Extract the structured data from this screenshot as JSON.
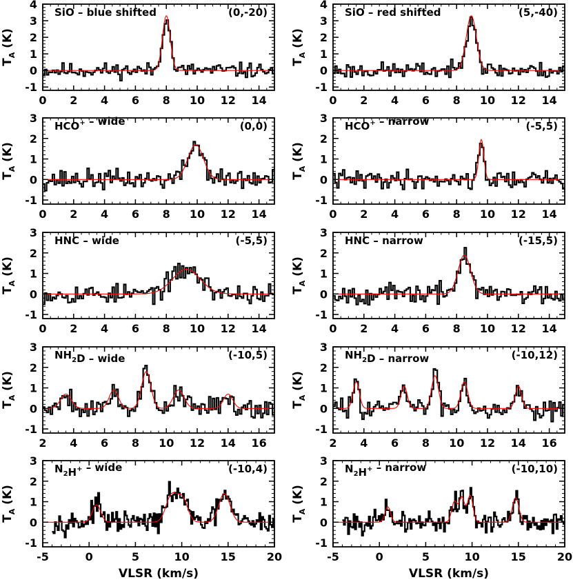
{
  "figure": {
    "xaxis_label": "VLSR (km/s)",
    "yaxis_label_main": "T",
    "yaxis_label_sub": "A",
    "yaxis_label_unit": "(K)"
  },
  "colors": {
    "spectrum": "#000000",
    "fit": "#ff0000",
    "axes": "#000000"
  },
  "chart_data": [
    {
      "type": "line",
      "title": "SiO – blue shifted",
      "title_main": "SiO",
      "title_suffix": " – blue shifted",
      "position_label": "(0,-20)",
      "xlim": [
        0,
        15
      ],
      "ylim": [
        -1.2,
        4
      ],
      "xticks": [
        0,
        2,
        4,
        6,
        8,
        10,
        12,
        14
      ],
      "yticks": [
        -1,
        0,
        1,
        2,
        3,
        4
      ],
      "x_range": [
        0,
        15
      ],
      "n_channels": 120,
      "noise": 0.28,
      "seed": 11,
      "series": [
        {
          "name": "fit",
          "components": [
            {
              "center": 8.0,
              "amp": 3.3,
              "width": 0.25
            }
          ]
        }
      ]
    },
    {
      "type": "line",
      "title": "SiO – red shifted",
      "title_main": "SiO",
      "title_suffix": " – red shifted",
      "position_label": "(5,-40)",
      "xlim": [
        0,
        15
      ],
      "ylim": [
        -1.2,
        4
      ],
      "xticks": [
        0,
        2,
        4,
        6,
        8,
        10,
        12,
        14
      ],
      "yticks": [
        -1,
        0,
        1,
        2,
        3,
        4
      ],
      "x_range": [
        0,
        15
      ],
      "n_channels": 120,
      "noise": 0.3,
      "seed": 23,
      "series": [
        {
          "name": "fit",
          "components": [
            {
              "center": 8.95,
              "amp": 3.3,
              "width": 0.33
            }
          ]
        }
      ]
    },
    {
      "type": "line",
      "title": "HCO+ – wide",
      "title_main": "HCO",
      "title_sup": "+",
      "title_suffix": " – wide",
      "position_label": "(0,0)",
      "xlim": [
        0,
        15
      ],
      "ylim": [
        -1.2,
        3
      ],
      "xticks": [
        0,
        2,
        4,
        6,
        8,
        10,
        12,
        14
      ],
      "yticks": [
        -1,
        0,
        1,
        2,
        3
      ],
      "x_range": [
        0,
        15
      ],
      "n_channels": 120,
      "noise": 0.3,
      "seed": 37,
      "series": [
        {
          "name": "fit",
          "components": [
            {
              "center": 9.9,
              "amp": 1.7,
              "width": 0.5
            }
          ]
        }
      ]
    },
    {
      "type": "line",
      "title": "HCO+ – narrow",
      "title_main": "HCO",
      "title_sup": "+",
      "title_suffix": " – narrow",
      "position_label": "(-5,5)",
      "xlim": [
        0,
        15
      ],
      "ylim": [
        -1.2,
        3
      ],
      "xticks": [
        0,
        2,
        4,
        6,
        8,
        10,
        12,
        14
      ],
      "yticks": [
        -1,
        0,
        1,
        2,
        3
      ],
      "x_range": [
        0,
        15
      ],
      "n_channels": 120,
      "noise": 0.28,
      "seed": 41,
      "series": [
        {
          "name": "fit",
          "components": [
            {
              "center": 9.6,
              "amp": 1.95,
              "width": 0.16
            }
          ]
        }
      ]
    },
    {
      "type": "line",
      "title": "HNC – wide",
      "title_main": "HNC",
      "title_suffix": " – wide",
      "position_label": "(-5,5)",
      "xlim": [
        0,
        15
      ],
      "ylim": [
        -1.2,
        3
      ],
      "xticks": [
        0,
        2,
        4,
        6,
        8,
        10,
        12,
        14
      ],
      "yticks": [
        -1,
        0,
        1,
        2,
        3
      ],
      "x_range": [
        0,
        15
      ],
      "n_channels": 120,
      "noise": 0.3,
      "seed": 53,
      "series": [
        {
          "name": "fit",
          "components": [
            {
              "center": 9.3,
              "amp": 1.2,
              "width": 0.9
            }
          ]
        }
      ]
    },
    {
      "type": "line",
      "title": "HNC – narrow",
      "title_main": "HNC",
      "title_suffix": " – narrow",
      "position_label": "(-15,5)",
      "xlim": [
        0,
        15
      ],
      "ylim": [
        -1.2,
        3
      ],
      "xticks": [
        0,
        2,
        4,
        6,
        8,
        10,
        12,
        14
      ],
      "yticks": [
        -1,
        0,
        1,
        2,
        3
      ],
      "x_range": [
        0,
        15
      ],
      "n_channels": 120,
      "noise": 0.3,
      "seed": 67,
      "series": [
        {
          "name": "fit",
          "components": [
            {
              "center": 8.5,
              "amp": 1.9,
              "width": 0.4
            }
          ]
        }
      ]
    },
    {
      "type": "line",
      "title": "NH2D – wide",
      "title_main": "NH",
      "title_sub": "2",
      "title_rest": "D",
      "title_suffix": " – wide",
      "position_label": "(-10,5)",
      "xlim": [
        2,
        17
      ],
      "ylim": [
        -1.2,
        3
      ],
      "xticks": [
        2,
        4,
        6,
        8,
        10,
        12,
        14,
        16
      ],
      "yticks": [
        -1,
        0,
        1,
        2,
        3
      ],
      "x_range": [
        2,
        17
      ],
      "n_channels": 120,
      "noise": 0.32,
      "seed": 79,
      "series": [
        {
          "name": "fit",
          "components": [
            {
              "center": 3.5,
              "amp": 0.7,
              "width": 0.35
            },
            {
              "center": 6.6,
              "amp": 0.9,
              "width": 0.3
            },
            {
              "center": 8.7,
              "amp": 1.8,
              "width": 0.3
            },
            {
              "center": 10.8,
              "amp": 0.9,
              "width": 0.35
            },
            {
              "center": 14.0,
              "amp": 0.7,
              "width": 0.3
            }
          ]
        }
      ]
    },
    {
      "type": "line",
      "title": "NH2D – narrow",
      "title_main": "NH",
      "title_sub": "2",
      "title_rest": "D",
      "title_suffix": " – narrow",
      "position_label": "(-10,12)",
      "xlim": [
        2,
        17
      ],
      "ylim": [
        -1.2,
        3
      ],
      "xticks": [
        2,
        4,
        6,
        8,
        10,
        12,
        14,
        16
      ],
      "yticks": [
        -1,
        0,
        1,
        2,
        3
      ],
      "x_range": [
        2,
        17
      ],
      "n_channels": 120,
      "noise": 0.3,
      "seed": 83,
      "series": [
        {
          "name": "fit",
          "components": [
            {
              "center": 3.5,
              "amp": 1.3,
              "width": 0.2
            },
            {
              "center": 6.6,
              "amp": 1.1,
              "width": 0.2
            },
            {
              "center": 8.6,
              "amp": 1.6,
              "width": 0.22
            },
            {
              "center": 10.5,
              "amp": 1.3,
              "width": 0.22
            },
            {
              "center": 14.0,
              "amp": 1.1,
              "width": 0.2
            }
          ]
        }
      ]
    },
    {
      "type": "line",
      "title": "N2H+ – wide",
      "title_main": "N",
      "title_sub": "2",
      "title_rest": "H",
      "title_sup": "+",
      "title_suffix": " – wide",
      "position_label": "(-10,4)",
      "xlim": [
        -5,
        20
      ],
      "ylim": [
        -1.2,
        3
      ],
      "xticks": [
        -5,
        0,
        5,
        10,
        15,
        20
      ],
      "yticks": [
        -1,
        0,
        1,
        2,
        3
      ],
      "x_range": [
        -4,
        20
      ],
      "n_channels": 160,
      "noise": 0.32,
      "seed": 97,
      "series": [
        {
          "name": "fit",
          "components": [
            {
              "center": 0.8,
              "amp": 0.85,
              "width": 0.45
            },
            {
              "center": 8.9,
              "amp": 1.3,
              "width": 0.6
            },
            {
              "center": 10.1,
              "amp": 1.1,
              "width": 0.55
            },
            {
              "center": 14.6,
              "amp": 1.4,
              "width": 0.6
            }
          ]
        }
      ]
    },
    {
      "type": "line",
      "title": "N2H+ – narrow",
      "title_main": "N",
      "title_sub": "2",
      "title_rest": "H",
      "title_sup": "+",
      "title_suffix": " – narrow",
      "position_label": "(-10,10)",
      "xlim": [
        -5,
        20
      ],
      "ylim": [
        -1.2,
        3
      ],
      "xticks": [
        -5,
        0,
        5,
        10,
        15,
        20
      ],
      "yticks": [
        -1,
        0,
        1,
        2,
        3
      ],
      "x_range": [
        -4,
        20
      ],
      "n_channels": 160,
      "noise": 0.32,
      "seed": 101,
      "series": [
        {
          "name": "fit",
          "components": [
            {
              "center": 0.9,
              "amp": 0.75,
              "width": 0.3
            },
            {
              "center": 8.1,
              "amp": 1.0,
              "width": 0.3
            },
            {
              "center": 8.9,
              "amp": 1.2,
              "width": 0.3
            },
            {
              "center": 9.8,
              "amp": 1.3,
              "width": 0.3
            },
            {
              "center": 14.7,
              "amp": 1.2,
              "width": 0.35
            }
          ]
        }
      ]
    }
  ]
}
